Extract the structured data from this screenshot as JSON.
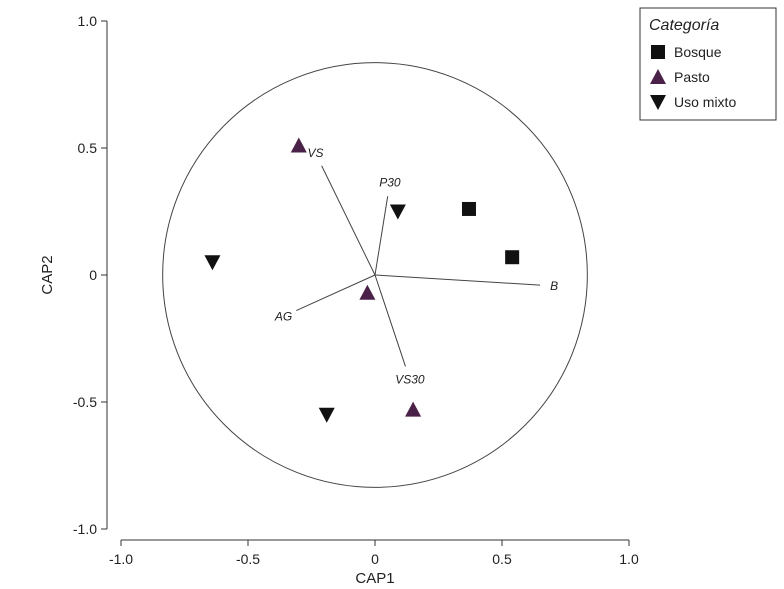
{
  "chart_data": {
    "type": "scatter",
    "xlabel": "CAP1",
    "ylabel": "CAP2",
    "xlim": [
      -1.0,
      1.0
    ],
    "ylim": [
      -1.0,
      1.0
    ],
    "xticks": [
      "-1.0",
      "-0.5",
      "0",
      "0.5",
      "1.0"
    ],
    "yticks": [
      "1.0",
      "0.5",
      "0",
      "-0.5",
      "-1.0"
    ],
    "grid": false,
    "reference_circle_radius": 0.836,
    "legend": {
      "title": "Categoría",
      "placement": "top-right"
    },
    "series": [
      {
        "name": "Bosque",
        "marker": "square",
        "color": "#111111",
        "points": [
          [
            0.37,
            0.26
          ],
          [
            0.54,
            0.07
          ]
        ]
      },
      {
        "name": "Pasto",
        "marker": "triangle-up",
        "color": "#4a2148",
        "points": [
          [
            -0.3,
            0.51
          ],
          [
            -0.03,
            -0.07
          ],
          [
            0.15,
            -0.53
          ]
        ]
      },
      {
        "name": "Uso mixto",
        "marker": "triangle-down",
        "color": "#111111",
        "points": [
          [
            -0.64,
            0.05
          ],
          [
            0.09,
            0.25
          ],
          [
            -0.19,
            -0.55
          ]
        ]
      }
    ],
    "vectors": [
      {
        "label": "VS",
        "x": -0.21,
        "y": 0.43
      },
      {
        "label": "P30",
        "x": 0.05,
        "y": 0.31
      },
      {
        "label": "B",
        "x": 0.65,
        "y": -0.04
      },
      {
        "label": "AG",
        "x": -0.31,
        "y": -0.14
      },
      {
        "label": "VS30",
        "x": 0.12,
        "y": -0.36
      }
    ]
  }
}
